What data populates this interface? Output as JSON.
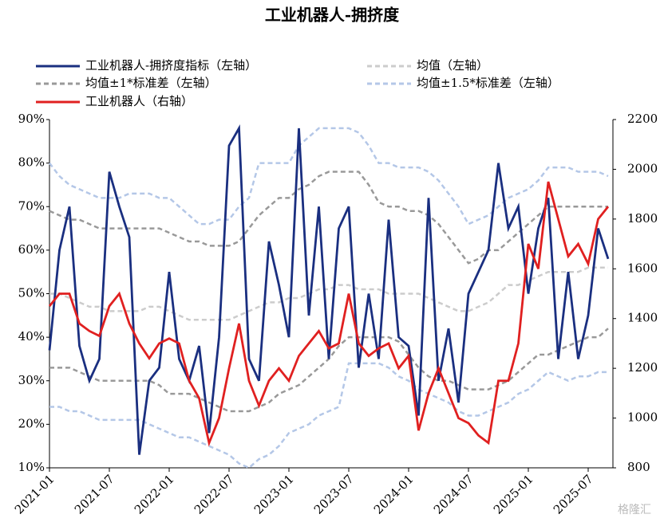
{
  "chart_data": {
    "type": "line",
    "title": "工业机器人-拥挤度",
    "watermark": "格隆汇",
    "categories": [
      "2021-01",
      null,
      null,
      null,
      null,
      null,
      "2021-07",
      null,
      null,
      null,
      null,
      null,
      "2022-01",
      null,
      null,
      null,
      null,
      null,
      "2022-07",
      null,
      null,
      null,
      null,
      null,
      "2023-01",
      null,
      null,
      null,
      null,
      null,
      "2023-07",
      null,
      null,
      null,
      null,
      null,
      "2024-01",
      null,
      null,
      null,
      null,
      null,
      "2024-07",
      null,
      null,
      null,
      null,
      null,
      "2025-01",
      null,
      null,
      null,
      null,
      null,
      "2025-07",
      null,
      null
    ],
    "ylim": [
      10,
      90
    ],
    "yticks": [
      {
        "value": 10,
        "label": "10%"
      },
      {
        "value": 20,
        "label": "20%"
      },
      {
        "value": 30,
        "label": "30%"
      },
      {
        "value": 40,
        "label": "40%"
      },
      {
        "value": 50,
        "label": "50%"
      },
      {
        "value": 60,
        "label": "60%"
      },
      {
        "value": 70,
        "label": "70%"
      },
      {
        "value": 80,
        "label": "80%"
      },
      {
        "value": 90,
        "label": "90%"
      }
    ],
    "y2lim": [
      800,
      2200
    ],
    "y2ticks": [
      800,
      1000,
      1200,
      1400,
      1600,
      1800,
      2000,
      2200
    ],
    "series": [
      {
        "name": "均值±1.5*标准差（左轴）",
        "color": "#b4c7e7",
        "dashed": true,
        "values": [
          80,
          77,
          75,
          74,
          73,
          72,
          72,
          72,
          73,
          73,
          73,
          72,
          72,
          70,
          68,
          66,
          66,
          67,
          67,
          70,
          72,
          80,
          80,
          80,
          80,
          84,
          86,
          88,
          88,
          88,
          88,
          87,
          84,
          80,
          80,
          79,
          79,
          79,
          78,
          76,
          73,
          70,
          66,
          67,
          68,
          70,
          72,
          73,
          74,
          76,
          79,
          79,
          79,
          78,
          78,
          78,
          77
        ]
      },
      {
        "name": null,
        "legend": 0,
        "color": "#b4c7e7",
        "dashed": true,
        "values": [
          24,
          24,
          23,
          23,
          22,
          21,
          21,
          21,
          21,
          21,
          20,
          19,
          18,
          17,
          17,
          16,
          15,
          14,
          13,
          11,
          10,
          12,
          13,
          15,
          18,
          19,
          20,
          22,
          23,
          24,
          34,
          34,
          34,
          34,
          33,
          31,
          30,
          28,
          27,
          26,
          25,
          23,
          22,
          22,
          23,
          24,
          25,
          27,
          28,
          30,
          32,
          31,
          30,
          31,
          31,
          32,
          32
        ]
      },
      {
        "name": "均值±1*标准差（左轴）",
        "color": "#999999",
        "dashed": true,
        "values": [
          69,
          68,
          67,
          67,
          66,
          65,
          65,
          65,
          65,
          65,
          65,
          65,
          64,
          63,
          62,
          62,
          61,
          61,
          61,
          62,
          65,
          68,
          70,
          72,
          72,
          74,
          75,
          77,
          78,
          78,
          78,
          78,
          75,
          71,
          70,
          70,
          69,
          69,
          68,
          66,
          63,
          60,
          57,
          58,
          60,
          60,
          62,
          64,
          66,
          68,
          70,
          70,
          70,
          70,
          70,
          70,
          70
        ]
      },
      {
        "name": null,
        "legend": 2,
        "color": "#999999",
        "dashed": true,
        "values": [
          33,
          33,
          33,
          32,
          31,
          30,
          30,
          30,
          30,
          30,
          30,
          29,
          27,
          27,
          27,
          26,
          25,
          24,
          23,
          23,
          23,
          24,
          25,
          27,
          28,
          29,
          31,
          33,
          35,
          38,
          40,
          40,
          40,
          40,
          40,
          39,
          36,
          33,
          31,
          30,
          30,
          29,
          28,
          28,
          28,
          29,
          30,
          32,
          34,
          36,
          36,
          37,
          38,
          39,
          40,
          40,
          42
        ]
      },
      {
        "name": "均值（左轴）",
        "color": "#cccccc",
        "dashed": true,
        "values": [
          50,
          50,
          49,
          48,
          47,
          47,
          46,
          46,
          46,
          46,
          47,
          47,
          46,
          45,
          44,
          44,
          44,
          44,
          44,
          45,
          46,
          47,
          48,
          48,
          49,
          49,
          50,
          51,
          51,
          52,
          52,
          51,
          51,
          51,
          50,
          50,
          50,
          50,
          49,
          48,
          47,
          46,
          46,
          47,
          48,
          50,
          52,
          52,
          53,
          54,
          55,
          55,
          55,
          55,
          56,
          56,
          56
        ]
      },
      {
        "name": "工业机器人-拥挤度指标（左轴）",
        "color": "#1a2f80",
        "values": [
          37,
          60,
          70,
          38,
          30,
          35,
          78,
          70,
          63,
          13,
          30,
          33,
          55,
          35,
          30,
          38,
          18,
          40,
          84,
          88,
          35,
          30,
          62,
          52,
          40,
          88,
          45,
          70,
          35,
          65,
          70,
          33,
          50,
          35,
          67,
          40,
          38,
          22,
          72,
          30,
          42,
          25,
          50,
          55,
          60,
          80,
          65,
          70,
          50,
          65,
          72,
          35,
          55,
          35,
          45,
          65,
          58
        ]
      },
      {
        "name": "工业机器人（右轴）",
        "color": "#e02020",
        "axis": "y2",
        "values": [
          1450,
          1500,
          1500,
          1380,
          1350,
          1330,
          1450,
          1500,
          1380,
          1300,
          1240,
          1300,
          1320,
          1300,
          1150,
          1080,
          900,
          1000,
          1200,
          1380,
          1150,
          1050,
          1150,
          1200,
          1150,
          1250,
          1300,
          1350,
          1280,
          1300,
          1500,
          1300,
          1250,
          1280,
          1300,
          1200,
          1250,
          950,
          1100,
          1200,
          1100,
          1000,
          980,
          930,
          900,
          1150,
          1150,
          1300,
          1700,
          1600,
          1950,
          1800,
          1650,
          1700,
          1620,
          1800,
          1850
        ]
      }
    ]
  }
}
